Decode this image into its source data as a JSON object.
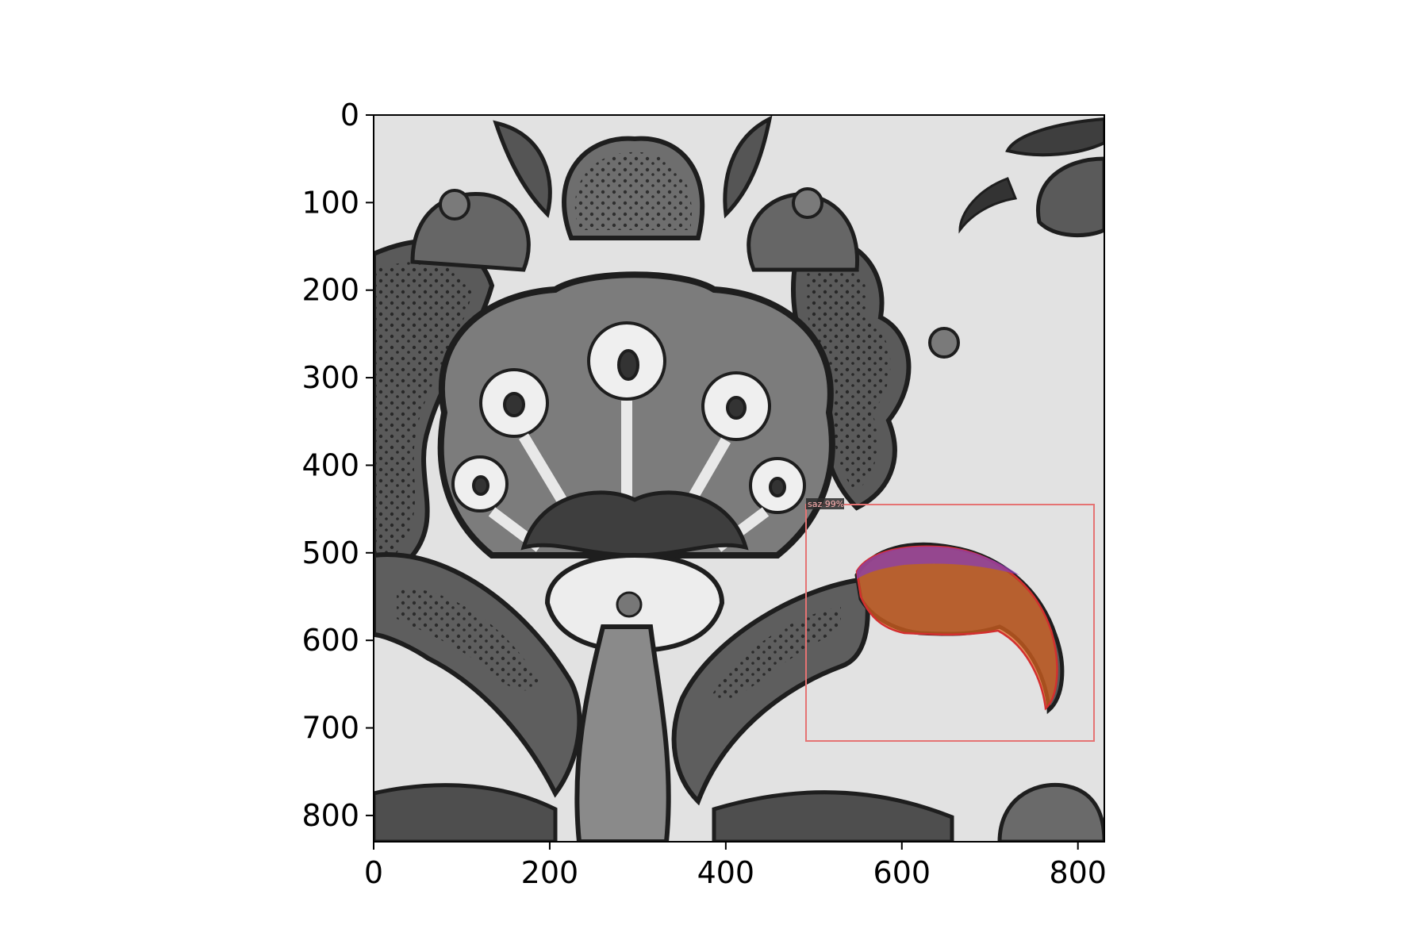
{
  "figure": {
    "x_axis": {
      "ticks": [
        "0",
        "200",
        "400",
        "600",
        "800"
      ],
      "range": [
        0,
        830
      ]
    },
    "y_axis": {
      "ticks": [
        "0",
        "100",
        "200",
        "300",
        "400",
        "500",
        "600",
        "700",
        "800"
      ],
      "range": [
        0,
        830
      ]
    }
  },
  "image": {
    "subject": "grayscale ornamental tile pattern with flowers and saz leaves",
    "background_color": "#e2e2e2",
    "ink_color": "#222222",
    "glaze_color": "#8a8a8a"
  },
  "detection": {
    "label": "saz 99%",
    "box": {
      "x0": 500,
      "y0": 448,
      "x1": 827,
      "y1": 718
    },
    "box_color": "#e57373",
    "mask_colors": [
      "#e0641e",
      "#8a3fb0"
    ]
  }
}
